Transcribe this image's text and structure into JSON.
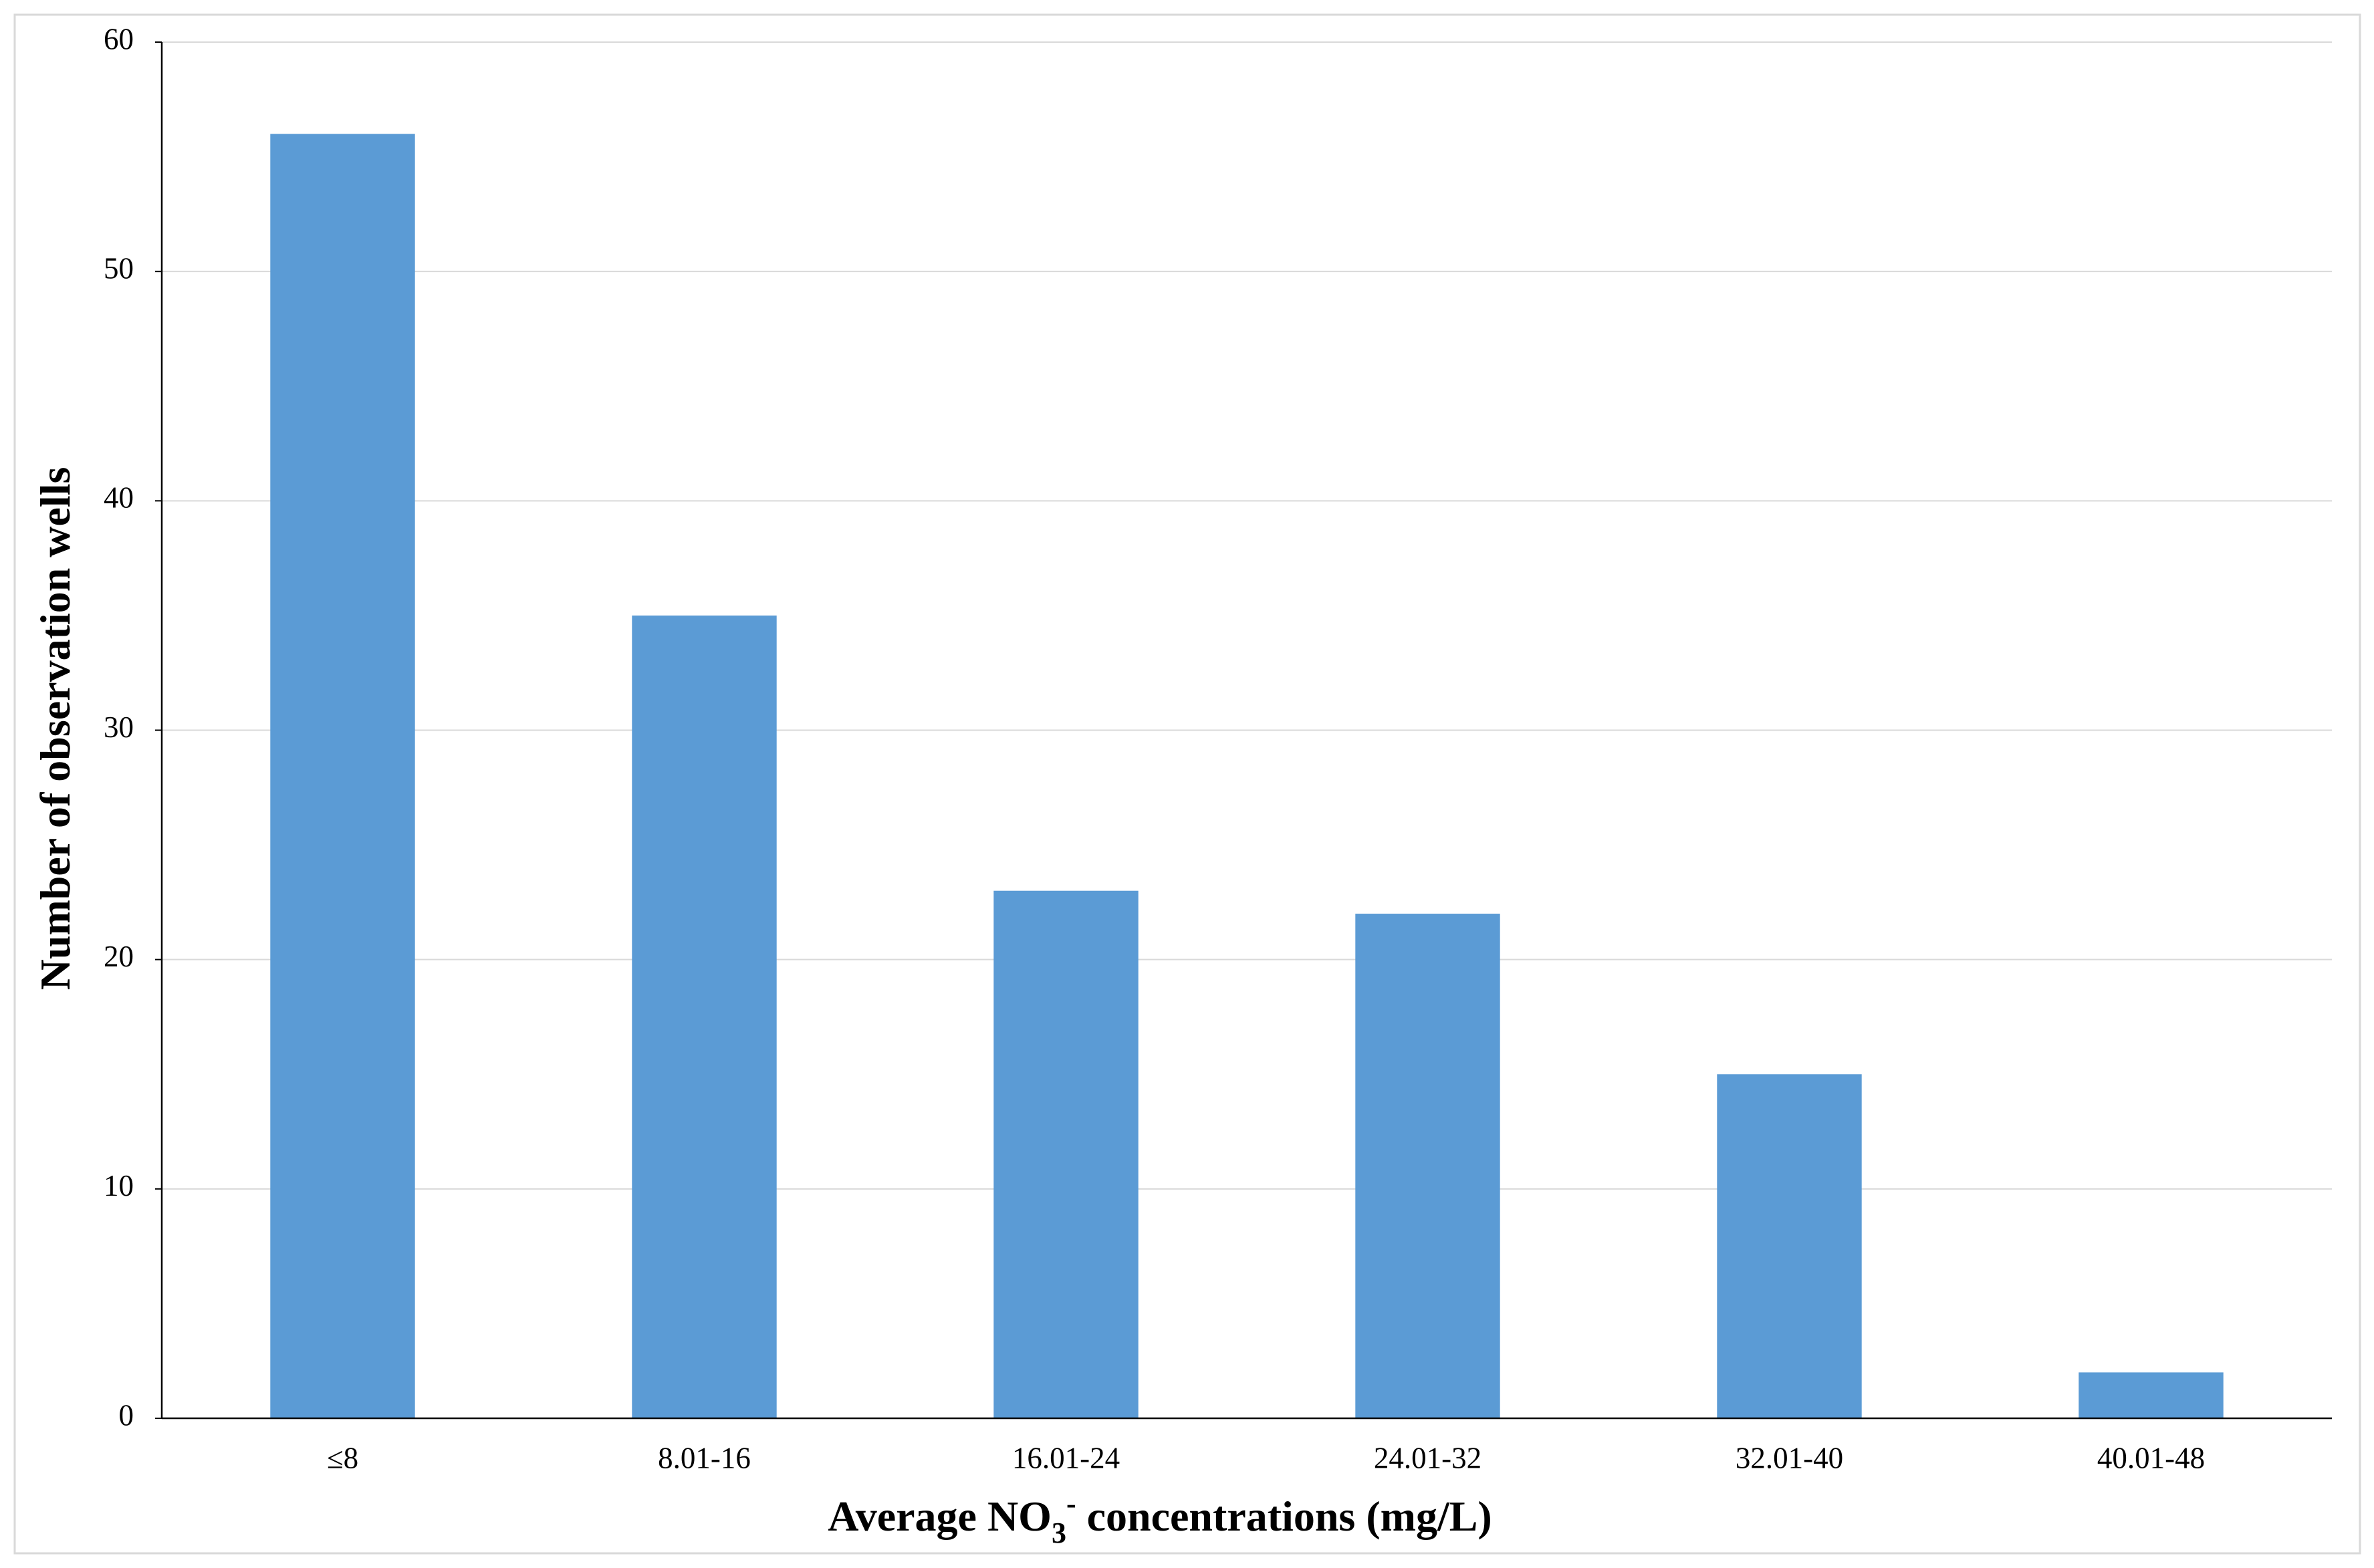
{
  "chart_data": {
    "type": "bar",
    "x_label": [
      "Average NO",
      "3",
      "-",
      " concentrations (mg/L)"
    ],
    "y_label": "Number of observation wells",
    "categories": [
      "≤8",
      "8.01-16",
      "16.01-24",
      "24.01-32",
      "32.01-40",
      "40.01-48"
    ],
    "values": [
      56,
      35,
      23,
      22,
      15,
      2
    ],
    "color": "#5b9bd5",
    "ylim": [
      0,
      60
    ],
    "yticks": [
      0,
      10,
      20,
      30,
      40,
      50,
      60
    ],
    "grid": true
  }
}
